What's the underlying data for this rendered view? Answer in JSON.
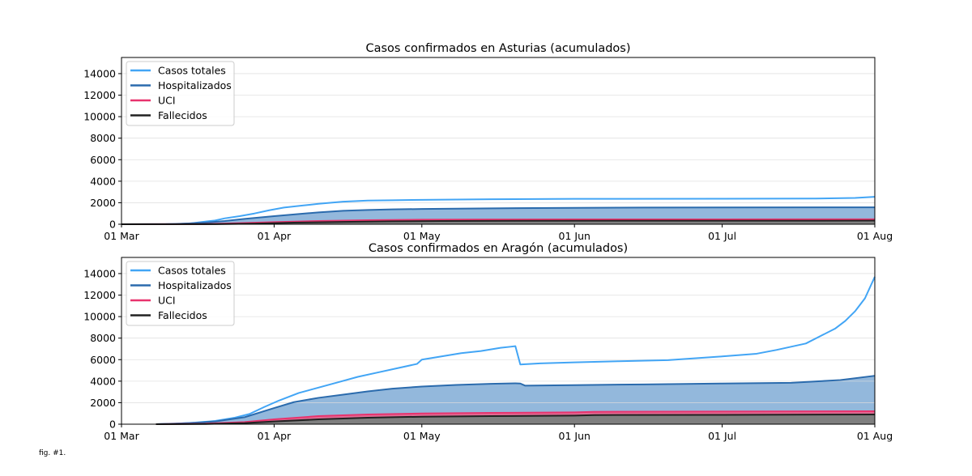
{
  "caption": "fig. #1.",
  "chart_data": [
    {
      "type": "area",
      "title": "Casos confirmados en Asturias (acumulados)",
      "xlabel": "",
      "ylabel": "",
      "x_range": [
        "2020-03-01",
        "2020-08-01"
      ],
      "xticks": [
        {
          "date": "2020-03-01",
          "label": "01 Mar"
        },
        {
          "date": "2020-04-01",
          "label": "01 Apr"
        },
        {
          "date": "2020-05-01",
          "label": "01 May"
        },
        {
          "date": "2020-06-01",
          "label": "01 Jun"
        },
        {
          "date": "2020-07-01",
          "label": "01 Jul"
        },
        {
          "date": "2020-08-01",
          "label": "01 Aug"
        }
      ],
      "ylim": [
        0,
        15500
      ],
      "yticks": [
        0,
        2000,
        4000,
        6000,
        8000,
        10000,
        12000,
        14000
      ],
      "grid": "horizontal",
      "legend_position": "top-left",
      "series": [
        {
          "name": "Casos totales",
          "color": "#42a5f5",
          "fill": null,
          "points": [
            [
              "2020-03-01",
              0
            ],
            [
              "2020-03-10",
              10
            ],
            [
              "2020-03-15",
              80
            ],
            [
              "2020-03-18",
              250
            ],
            [
              "2020-03-20",
              350
            ],
            [
              "2020-03-22",
              550
            ],
            [
              "2020-03-25",
              750
            ],
            [
              "2020-03-28",
              1000
            ],
            [
              "2020-03-31",
              1300
            ],
            [
              "2020-04-03",
              1550
            ],
            [
              "2020-04-06",
              1700
            ],
            [
              "2020-04-10",
              1900
            ],
            [
              "2020-04-15",
              2100
            ],
            [
              "2020-04-20",
              2200
            ],
            [
              "2020-04-25",
              2230
            ],
            [
              "2020-05-01",
              2270
            ],
            [
              "2020-05-15",
              2320
            ],
            [
              "2020-06-01",
              2360
            ],
            [
              "2020-07-01",
              2370
            ],
            [
              "2020-07-20",
              2390
            ],
            [
              "2020-07-28",
              2450
            ],
            [
              "2020-08-01",
              2550
            ]
          ]
        },
        {
          "name": "Hospitalizados",
          "color": "#2b6bad",
          "fill": "#93b8dc",
          "points": [
            [
              "2020-03-01",
              0
            ],
            [
              "2020-03-12",
              20
            ],
            [
              "2020-03-18",
              150
            ],
            [
              "2020-03-22",
              300
            ],
            [
              "2020-03-26",
              500
            ],
            [
              "2020-04-01",
              750
            ],
            [
              "2020-04-06",
              950
            ],
            [
              "2020-04-10",
              1100
            ],
            [
              "2020-04-15",
              1250
            ],
            [
              "2020-04-20",
              1330
            ],
            [
              "2020-04-25",
              1380
            ],
            [
              "2020-05-01",
              1420
            ],
            [
              "2020-05-15",
              1480
            ],
            [
              "2020-06-01",
              1520
            ],
            [
              "2020-06-15",
              1550
            ],
            [
              "2020-07-01",
              1560
            ],
            [
              "2020-08-01",
              1570
            ]
          ]
        },
        {
          "name": "UCI",
          "color": "#e8336d",
          "fill": "#e06a93",
          "points": [
            [
              "2020-03-01",
              0
            ],
            [
              "2020-03-18",
              20
            ],
            [
              "2020-03-25",
              100
            ],
            [
              "2020-04-01",
              200
            ],
            [
              "2020-04-10",
              300
            ],
            [
              "2020-04-20",
              380
            ],
            [
              "2020-05-01",
              420
            ],
            [
              "2020-05-15",
              440
            ],
            [
              "2020-06-01",
              450
            ],
            [
              "2020-08-01",
              460
            ]
          ]
        },
        {
          "name": "Fallecidos",
          "color": "#222222",
          "fill": "#7f7f7f",
          "points": [
            [
              "2020-03-01",
              0
            ],
            [
              "2020-03-20",
              10
            ],
            [
              "2020-03-28",
              60
            ],
            [
              "2020-04-05",
              150
            ],
            [
              "2020-04-15",
              220
            ],
            [
              "2020-04-25",
              270
            ],
            [
              "2020-05-05",
              300
            ],
            [
              "2020-05-20",
              315
            ],
            [
              "2020-06-10",
              325
            ],
            [
              "2020-08-01",
              335
            ]
          ]
        }
      ]
    },
    {
      "type": "area",
      "title": "Casos confirmados en Aragón (acumulados)",
      "xlabel": "",
      "ylabel": "",
      "x_range": [
        "2020-03-01",
        "2020-08-01"
      ],
      "xticks": [
        {
          "date": "2020-03-01",
          "label": "01 Mar"
        },
        {
          "date": "2020-04-01",
          "label": "01 Apr"
        },
        {
          "date": "2020-05-01",
          "label": "01 May"
        },
        {
          "date": "2020-06-01",
          "label": "01 Jun"
        },
        {
          "date": "2020-07-01",
          "label": "01 Jul"
        },
        {
          "date": "2020-08-01",
          "label": "01 Aug"
        }
      ],
      "ylim": [
        0,
        15500
      ],
      "yticks": [
        0,
        2000,
        4000,
        6000,
        8000,
        10000,
        12000,
        14000
      ],
      "grid": "horizontal",
      "legend_position": "top-left",
      "series": [
        {
          "name": "Casos totales",
          "color": "#42a5f5",
          "fill": null,
          "points": [
            [
              "2020-03-08",
              0
            ],
            [
              "2020-03-12",
              50
            ],
            [
              "2020-03-16",
              150
            ],
            [
              "2020-03-20",
              300
            ],
            [
              "2020-03-24",
              600
            ],
            [
              "2020-03-27",
              950
            ],
            [
              "2020-03-30",
              1600
            ],
            [
              "2020-04-02",
              2200
            ],
            [
              "2020-04-06",
              2900
            ],
            [
              "2020-04-10",
              3400
            ],
            [
              "2020-04-14",
              3900
            ],
            [
              "2020-04-18",
              4400
            ],
            [
              "2020-04-22",
              4800
            ],
            [
              "2020-04-26",
              5200
            ],
            [
              "2020-04-30",
              5600
            ],
            [
              "2020-05-01",
              6000
            ],
            [
              "2020-05-05",
              6300
            ],
            [
              "2020-05-09",
              6600
            ],
            [
              "2020-05-13",
              6800
            ],
            [
              "2020-05-17",
              7100
            ],
            [
              "2020-05-19",
              7200
            ],
            [
              "2020-05-20",
              7250
            ],
            [
              "2020-05-21",
              5550
            ],
            [
              "2020-05-25",
              5650
            ],
            [
              "2020-06-01",
              5750
            ],
            [
              "2020-06-10",
              5850
            ],
            [
              "2020-06-20",
              5950
            ],
            [
              "2020-07-01",
              6300
            ],
            [
              "2020-07-08",
              6550
            ],
            [
              "2020-07-12",
              6900
            ],
            [
              "2020-07-15",
              7200
            ],
            [
              "2020-07-18",
              7500
            ],
            [
              "2020-07-21",
              8200
            ],
            [
              "2020-07-24",
              8900
            ],
            [
              "2020-07-26",
              9600
            ],
            [
              "2020-07-28",
              10500
            ],
            [
              "2020-07-30",
              11700
            ],
            [
              "2020-08-01",
              13700
            ]
          ]
        },
        {
          "name": "Hospitalizados",
          "color": "#2b6bad",
          "fill": "#93b8dc",
          "points": [
            [
              "2020-03-08",
              0
            ],
            [
              "2020-03-15",
              100
            ],
            [
              "2020-03-20",
              250
            ],
            [
              "2020-03-26",
              650
            ],
            [
              "2020-04-01",
              1500
            ],
            [
              "2020-04-05",
              2050
            ],
            [
              "2020-04-10",
              2450
            ],
            [
              "2020-04-15",
              2750
            ],
            [
              "2020-04-20",
              3050
            ],
            [
              "2020-04-25",
              3300
            ],
            [
              "2020-05-01",
              3500
            ],
            [
              "2020-05-08",
              3650
            ],
            [
              "2020-05-15",
              3750
            ],
            [
              "2020-05-20",
              3800
            ],
            [
              "2020-05-21",
              3780
            ],
            [
              "2020-05-22",
              3580
            ],
            [
              "2020-06-01",
              3630
            ],
            [
              "2020-06-15",
              3700
            ],
            [
              "2020-07-01",
              3780
            ],
            [
              "2020-07-15",
              3850
            ],
            [
              "2020-07-25",
              4100
            ],
            [
              "2020-08-01",
              4500
            ]
          ]
        },
        {
          "name": "UCI",
          "color": "#e8336d",
          "fill": "#e06a93",
          "points": [
            [
              "2020-03-08",
              0
            ],
            [
              "2020-03-18",
              50
            ],
            [
              "2020-03-26",
              200
            ],
            [
              "2020-04-01",
              450
            ],
            [
              "2020-04-10",
              750
            ],
            [
              "2020-04-20",
              900
            ],
            [
              "2020-05-01",
              1000
            ],
            [
              "2020-05-15",
              1050
            ],
            [
              "2020-06-01",
              1100
            ],
            [
              "2020-06-05",
              1150
            ],
            [
              "2020-08-01",
              1200
            ]
          ]
        },
        {
          "name": "Fallecidos",
          "color": "#222222",
          "fill": "#7f7f7f",
          "points": [
            [
              "2020-03-08",
              0
            ],
            [
              "2020-03-18",
              20
            ],
            [
              "2020-03-26",
              100
            ],
            [
              "2020-04-01",
              250
            ],
            [
              "2020-04-10",
              450
            ],
            [
              "2020-04-20",
              600
            ],
            [
              "2020-05-01",
              700
            ],
            [
              "2020-05-15",
              750
            ],
            [
              "2020-06-01",
              800
            ],
            [
              "2020-06-05",
              850
            ],
            [
              "2020-07-01",
              870
            ],
            [
              "2020-08-01",
              900
            ]
          ]
        }
      ]
    }
  ]
}
